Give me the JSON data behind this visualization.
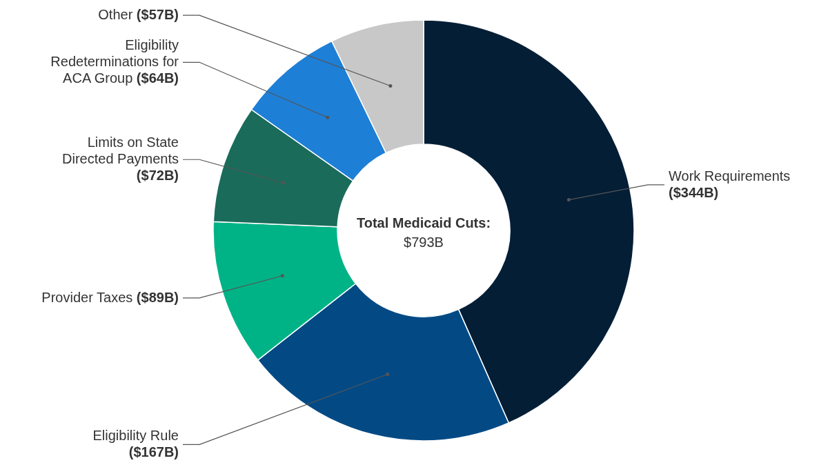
{
  "chart_data": {
    "type": "donut",
    "categories": [
      "Work Requirements",
      "Eligibility Rule",
      "Provider Taxes",
      "Limits on State Directed Payments",
      "Eligibility Redeterminations for ACA Group",
      "Other"
    ],
    "values": [
      344,
      167,
      89,
      72,
      64,
      57
    ],
    "value_labels": [
      "($344B)",
      "($167B)",
      "($89B)",
      "($72B)",
      "($64B)",
      "($57B)"
    ],
    "colors": [
      "#041e36",
      "#034a85",
      "#00b386",
      "#1a6b5a",
      "#1e7fd6",
      "#c8c8c8"
    ],
    "annotations": [
      "Total Medicaid Cuts:",
      "$793B"
    ]
  }
}
